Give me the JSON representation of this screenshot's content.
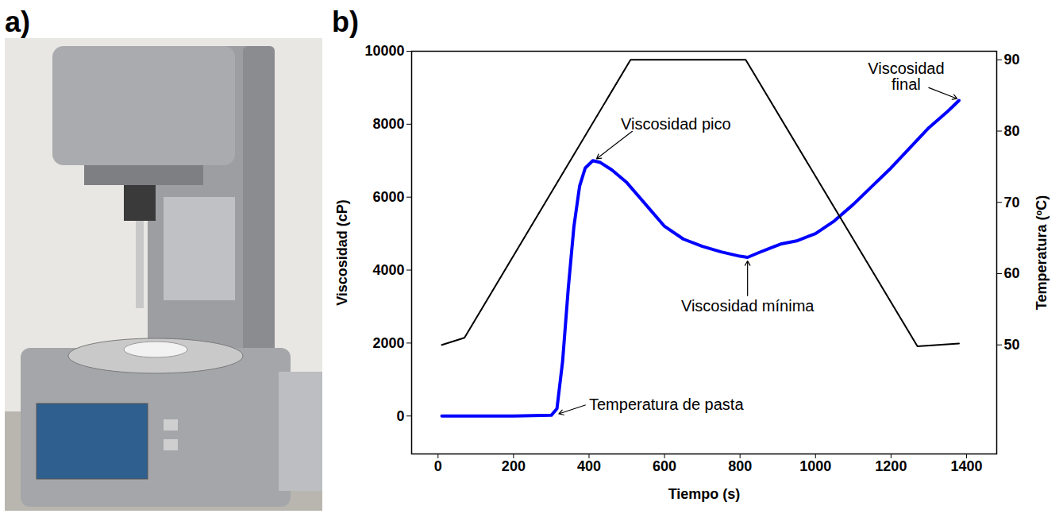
{
  "photo": {
    "panel_label": "a)"
  },
  "chart_data": {
    "type": "line",
    "panel_label": "b)",
    "x_label": "Tiempo (s)",
    "y_label": "Viscosidad (cP)",
    "y2_label": "Temperatura (ºC)",
    "xlim": [
      -70,
      1480
    ],
    "xticks": [
      0,
      200,
      400,
      600,
      800,
      1000,
      1200,
      1400
    ],
    "ylim": [
      -1040,
      10000
    ],
    "yticks": [
      0,
      2000,
      4000,
      6000,
      8000,
      10000
    ],
    "y2lim": [
      34.7,
      91.2
    ],
    "y2ticks": [
      50,
      60,
      70,
      80,
      90
    ],
    "series": [
      {
        "color": "#0000ff",
        "x": [
          10,
          100,
          200,
          300,
          315,
          330,
          345,
          360,
          375,
          390,
          410,
          430,
          460,
          500,
          550,
          600,
          650,
          700,
          750,
          800,
          820,
          850,
          880,
          910,
          950,
          1000,
          1050,
          1100,
          1150,
          1200,
          1250,
          1300,
          1350,
          1380
        ],
        "values": [
          0,
          0,
          0,
          20,
          200,
          1500,
          3500,
          5200,
          6300,
          6800,
          7000,
          6950,
          6750,
          6400,
          5800,
          5200,
          4850,
          4650,
          4500,
          4380,
          4350,
          4480,
          4600,
          4720,
          4800,
          5000,
          5350,
          5800,
          6300,
          6800,
          7350,
          7900,
          8350,
          8650
        ]
      },
      {
        "color": "#000000",
        "axis": "y2",
        "x": [
          10,
          70,
          510,
          815,
          1270,
          1380
        ],
        "values": [
          50,
          51,
          90,
          90,
          49.8,
          50.2
        ]
      }
    ],
    "annotations": [
      {
        "text": "Viscosidad pico",
        "x": 410,
        "y": 7000
      },
      {
        "text": "Viscosidad mínima",
        "x": 820,
        "y": 4350
      },
      {
        "text": "Temperatura de pasta",
        "x": 315,
        "y": 20
      },
      {
        "text": "Viscosidad\nfinal",
        "x": 1380,
        "y": 8650
      }
    ]
  }
}
